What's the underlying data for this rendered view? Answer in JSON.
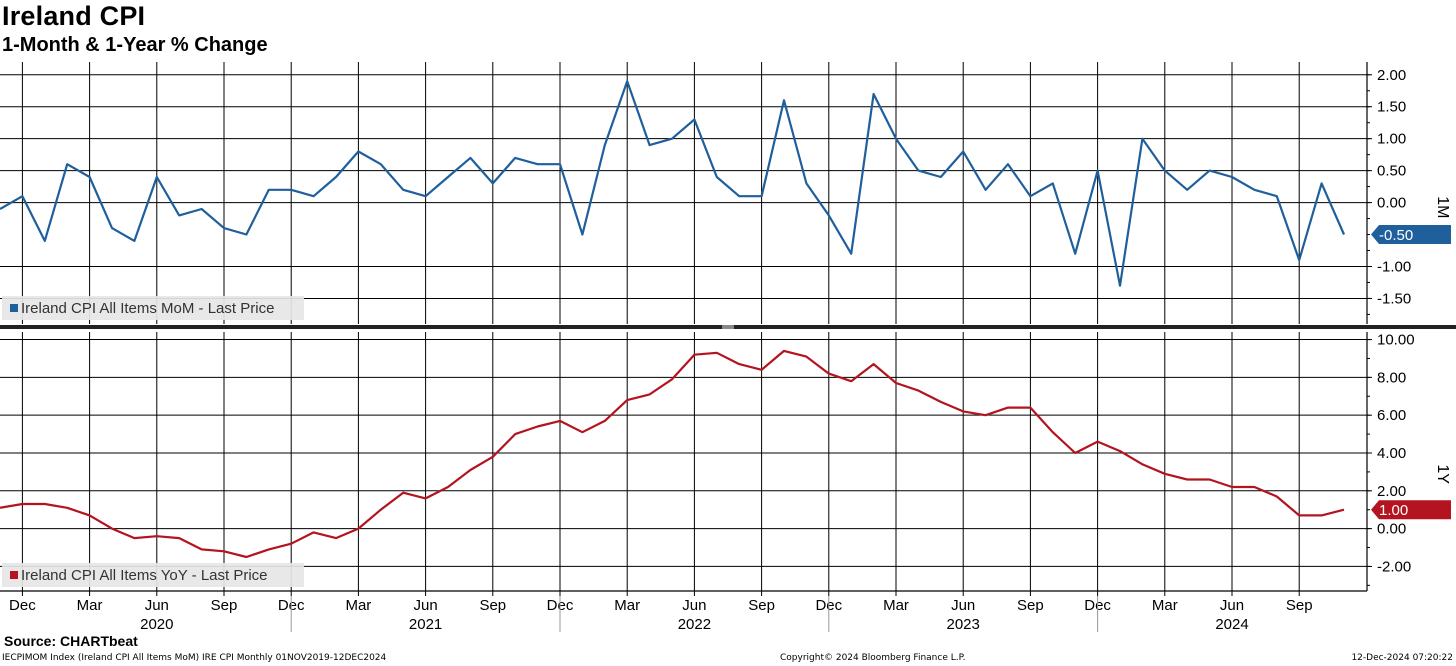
{
  "title": "Ireland CPI",
  "subtitle": "1-Month & 1-Year % Change",
  "source": "Source: CHARTbeat",
  "footer": {
    "left": "IECPIMOM Index (Ireland CPI All Items MoM) IRE CPI  Monthly 01NOV2019-12DEC2024",
    "middle": "Copyright© 2024 Bloomberg Finance L.P.",
    "right": "12-Dec-2024 07:20:22"
  },
  "colors": {
    "mom": "#1f5f9c",
    "yoy": "#b3141f",
    "grid": "#000000"
  },
  "chart_data": [
    {
      "type": "line",
      "panel_label": "1M",
      "legend": "Ireland CPI All Items MoM - Last Price",
      "legend_position": "bottom-left",
      "last_value_label": "-0.50",
      "ylim": [
        -1.9,
        2.2
      ],
      "yticks": [
        2.0,
        1.5,
        1.0,
        0.5,
        0.0,
        -1.0,
        -1.5
      ],
      "ytick_labels": [
        "2.00",
        "1.50",
        "1.00",
        "0.50",
        "0.00",
        "-1.00",
        "-1.50"
      ],
      "grid": true,
      "series": [
        {
          "name": "Ireland CPI All Items MoM - Last Price",
          "x": [
            "2019-11",
            "2019-12",
            "2020-01",
            "2020-02",
            "2020-03",
            "2020-04",
            "2020-05",
            "2020-06",
            "2020-07",
            "2020-08",
            "2020-09",
            "2020-10",
            "2020-11",
            "2020-12",
            "2021-01",
            "2021-02",
            "2021-03",
            "2021-04",
            "2021-05",
            "2021-06",
            "2021-07",
            "2021-08",
            "2021-09",
            "2021-10",
            "2021-11",
            "2021-12",
            "2022-01",
            "2022-02",
            "2022-03",
            "2022-04",
            "2022-05",
            "2022-06",
            "2022-07",
            "2022-08",
            "2022-09",
            "2022-10",
            "2022-11",
            "2022-12",
            "2023-01",
            "2023-02",
            "2023-03",
            "2023-04",
            "2023-05",
            "2023-06",
            "2023-07",
            "2023-08",
            "2023-09",
            "2023-10",
            "2023-11",
            "2023-12",
            "2024-01",
            "2024-02",
            "2024-03",
            "2024-04",
            "2024-05",
            "2024-06",
            "2024-07",
            "2024-08",
            "2024-09",
            "2024-10",
            "2024-11"
          ],
          "values": [
            -0.1,
            0.1,
            -0.6,
            0.6,
            0.4,
            -0.4,
            -0.6,
            0.4,
            -0.2,
            -0.1,
            -0.4,
            -0.5,
            0.2,
            0.2,
            0.1,
            0.4,
            0.8,
            0.6,
            0.2,
            0.1,
            0.4,
            0.7,
            0.3,
            0.7,
            0.6,
            0.6,
            -0.5,
            0.9,
            1.9,
            0.9,
            1.0,
            1.3,
            0.4,
            0.1,
            0.1,
            1.6,
            0.3,
            -0.2,
            -0.8,
            1.7,
            1.0,
            0.5,
            0.4,
            0.8,
            0.2,
            0.6,
            0.1,
            0.3,
            -0.8,
            0.5,
            -1.3,
            1.0,
            0.5,
            0.2,
            0.5,
            0.4,
            0.2,
            0.1,
            -0.9,
            0.3,
            -0.5
          ]
        }
      ]
    },
    {
      "type": "line",
      "panel_label": "1Y",
      "legend": "Ireland CPI All Items YoY - Last Price",
      "legend_position": "bottom-left",
      "last_value_label": "1.00",
      "ylim": [
        -3.3,
        10.4
      ],
      "yticks": [
        10,
        8,
        6,
        4,
        2,
        0,
        -2
      ],
      "ytick_labels": [
        "10.00",
        "8.00",
        "6.00",
        "4.00",
        "2.00",
        "0.00",
        "-2.00"
      ],
      "grid": true,
      "series": [
        {
          "name": "Ireland CPI All Items YoY - Last Price",
          "x": [
            "2019-11",
            "2019-12",
            "2020-01",
            "2020-02",
            "2020-03",
            "2020-04",
            "2020-05",
            "2020-06",
            "2020-07",
            "2020-08",
            "2020-09",
            "2020-10",
            "2020-11",
            "2020-12",
            "2021-01",
            "2021-02",
            "2021-03",
            "2021-04",
            "2021-05",
            "2021-06",
            "2021-07",
            "2021-08",
            "2021-09",
            "2021-10",
            "2021-11",
            "2021-12",
            "2022-01",
            "2022-02",
            "2022-03",
            "2022-04",
            "2022-05",
            "2022-06",
            "2022-07",
            "2022-08",
            "2022-09",
            "2022-10",
            "2022-11",
            "2022-12",
            "2023-01",
            "2023-02",
            "2023-03",
            "2023-04",
            "2023-05",
            "2023-06",
            "2023-07",
            "2023-08",
            "2023-09",
            "2023-10",
            "2023-11",
            "2023-12",
            "2024-01",
            "2024-02",
            "2024-03",
            "2024-04",
            "2024-05",
            "2024-06",
            "2024-07",
            "2024-08",
            "2024-09",
            "2024-10",
            "2024-11"
          ],
          "values": [
            1.1,
            1.3,
            1.3,
            1.1,
            0.7,
            0.0,
            -0.5,
            -0.4,
            -0.5,
            -1.1,
            -1.2,
            -1.5,
            -1.1,
            -0.8,
            -0.2,
            -0.5,
            0.0,
            1.0,
            1.9,
            1.6,
            2.2,
            3.1,
            3.8,
            5.0,
            5.4,
            5.7,
            5.1,
            5.7,
            6.8,
            7.1,
            7.9,
            9.2,
            9.3,
            8.7,
            8.4,
            9.4,
            9.1,
            8.2,
            7.8,
            8.7,
            7.7,
            7.3,
            6.7,
            6.2,
            6.0,
            6.4,
            6.4,
            5.1,
            4.0,
            4.6,
            4.1,
            3.4,
            2.9,
            2.6,
            2.6,
            2.2,
            2.2,
            1.7,
            0.7,
            0.7,
            1.0
          ]
        }
      ]
    }
  ],
  "x_axis": {
    "month_labels": [
      {
        "date": "2019-12",
        "label": "Dec"
      },
      {
        "date": "2020-03",
        "label": "Mar"
      },
      {
        "date": "2020-06",
        "label": "Jun"
      },
      {
        "date": "2020-09",
        "label": "Sep"
      },
      {
        "date": "2020-12",
        "label": "Dec"
      },
      {
        "date": "2021-03",
        "label": "Mar"
      },
      {
        "date": "2021-06",
        "label": "Jun"
      },
      {
        "date": "2021-09",
        "label": "Sep"
      },
      {
        "date": "2021-12",
        "label": "Dec"
      },
      {
        "date": "2022-03",
        "label": "Mar"
      },
      {
        "date": "2022-06",
        "label": "Jun"
      },
      {
        "date": "2022-09",
        "label": "Sep"
      },
      {
        "date": "2022-12",
        "label": "Dec"
      },
      {
        "date": "2023-03",
        "label": "Mar"
      },
      {
        "date": "2023-06",
        "label": "Jun"
      },
      {
        "date": "2023-09",
        "label": "Sep"
      },
      {
        "date": "2023-12",
        "label": "Dec"
      },
      {
        "date": "2024-03",
        "label": "Mar"
      },
      {
        "date": "2024-06",
        "label": "Jun"
      },
      {
        "date": "2024-09",
        "label": "Sep"
      }
    ],
    "year_labels": [
      {
        "label": "2020",
        "date": "2020-06"
      },
      {
        "label": "2021",
        "date": "2021-06"
      },
      {
        "label": "2022",
        "date": "2022-06"
      },
      {
        "label": "2023",
        "date": "2023-06"
      },
      {
        "label": "2024",
        "date": "2024-06"
      }
    ],
    "year_separators": [
      "2020-12",
      "2021-12",
      "2022-12",
      "2023-12"
    ]
  }
}
